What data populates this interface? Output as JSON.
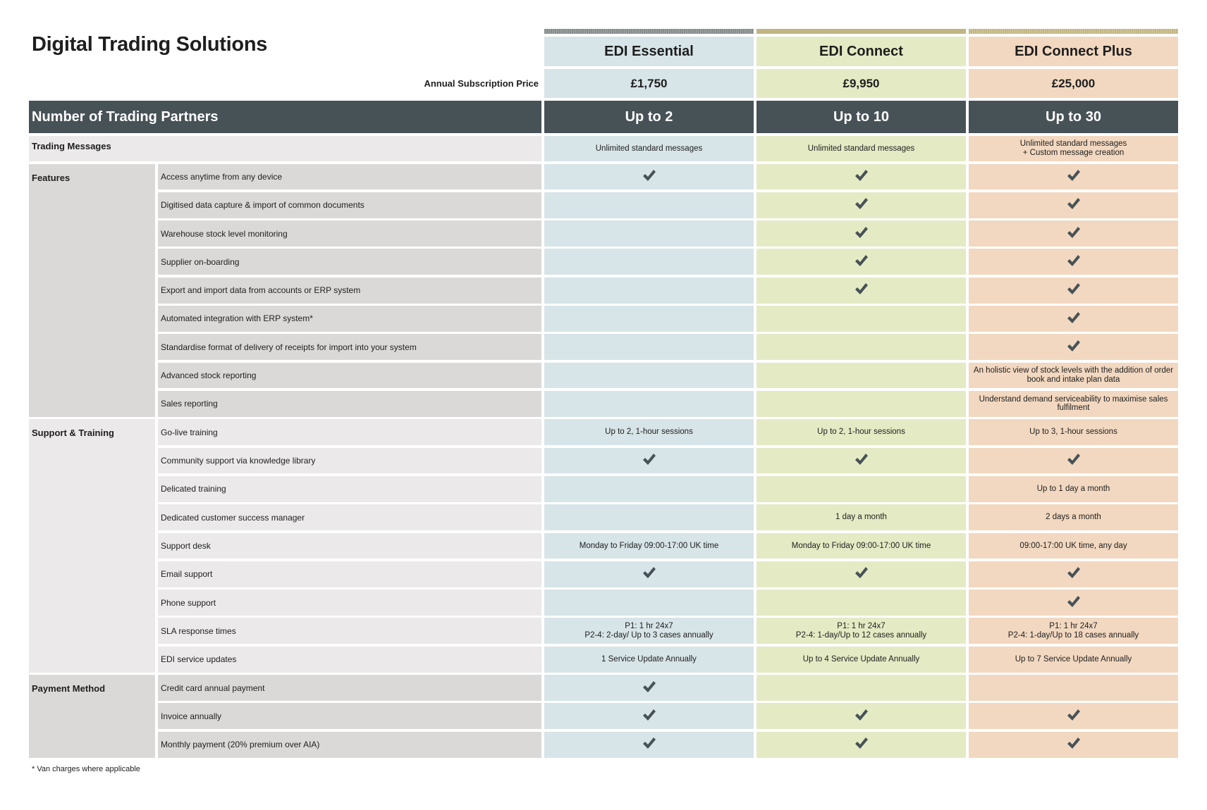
{
  "title": "Digital Trading Solutions",
  "plans": [
    "EDI Essential",
    "EDI Connect",
    "EDI Connect Plus"
  ],
  "price_label": "Annual Subscription Price",
  "prices": [
    "£1,750",
    "£9,950",
    "£25,000"
  ],
  "partners_label": "Number of Trading Partners",
  "partners": [
    "Up to 2",
    "Up to 10",
    "Up to 30"
  ],
  "trading_messages": {
    "label": "Trading Messages",
    "values": [
      "Unlimited standard messages",
      "Unlimited standard messages",
      "Unlimited standard messages\n+ Custom message creation"
    ]
  },
  "groups": [
    {
      "label": "Features",
      "shade": "dark",
      "rows": [
        {
          "label": "Access anytime from any device",
          "values": [
            "check",
            "check",
            "check"
          ]
        },
        {
          "label": "Digitised data capture & import of common documents",
          "values": [
            "",
            "check",
            "check"
          ]
        },
        {
          "label": "Warehouse stock level monitoring",
          "values": [
            "",
            "check",
            "check"
          ]
        },
        {
          "label": "Supplier on-boarding",
          "values": [
            "",
            "check",
            "check"
          ]
        },
        {
          "label": "Export and import data from accounts or ERP system",
          "values": [
            "",
            "check",
            "check"
          ]
        },
        {
          "label": "Automated integration with ERP system*",
          "values": [
            "",
            "",
            "check"
          ]
        },
        {
          "label": "Standardise format of delivery of receipts for import into your system",
          "values": [
            "",
            "",
            "check"
          ]
        },
        {
          "label": "Advanced stock reporting",
          "values": [
            "",
            "",
            "An holistic view of stock levels with the addition of order book and intake plan data"
          ]
        },
        {
          "label": "Sales reporting",
          "values": [
            "",
            "",
            "Understand demand serviceability to maximise sales fulfilment"
          ]
        }
      ]
    },
    {
      "label": "Support & Training",
      "shade": "light",
      "rows": [
        {
          "label": "Go-live training",
          "values": [
            "Up to 2, 1-hour sessions",
            "Up to 2, 1-hour sessions",
            "Up to 3, 1-hour sessions"
          ]
        },
        {
          "label": "Community support via knowledge library",
          "values": [
            "check",
            "check",
            "check"
          ]
        },
        {
          "label": "Delicated training",
          "values": [
            "",
            "",
            "Up to 1 day a month"
          ]
        },
        {
          "label": "Dedicated customer success manager",
          "values": [
            "",
            "1 day a month",
            "2 days a month"
          ]
        },
        {
          "label": "Support desk",
          "values": [
            "Monday to Friday 09:00-17:00 UK time",
            "Monday to Friday 09:00-17:00 UK time",
            "09:00-17:00 UK time, any day"
          ]
        },
        {
          "label": "Email support",
          "values": [
            "check",
            "check",
            "check"
          ]
        },
        {
          "label": "Phone support",
          "values": [
            "",
            "",
            "check"
          ]
        },
        {
          "label": "SLA response times",
          "values": [
            "P1: 1 hr 24x7\nP2-4: 2-day/ Up to 3 cases annually",
            "P1: 1 hr 24x7\nP2-4: 1-day/Up to 12 cases annually",
            "P1: 1 hr 24x7\nP2-4: 1-day/Up to 18 cases annually"
          ]
        },
        {
          "label": "EDI service updates",
          "values": [
            "1 Service Update Annually",
            "Up to  4 Service Update Annually",
            "Up to 7 Service Update Annually"
          ]
        }
      ]
    },
    {
      "label": "Payment Method",
      "shade": "dark",
      "rows": [
        {
          "label": "Credit card annual payment",
          "values": [
            "check",
            "",
            ""
          ]
        },
        {
          "label": "Invoice annually",
          "values": [
            "check",
            "check",
            "check"
          ]
        },
        {
          "label": "Monthly payment (20% premium over AIA)",
          "values": [
            "check",
            "check",
            "check"
          ]
        }
      ]
    }
  ],
  "footnote": "* Van charges where applicable",
  "colors": {
    "essential": "#d7e4e8",
    "connect": "#e4eac4",
    "connect_plus": "#f2d8c0",
    "header_dark": "#475257",
    "check": "#475257"
  }
}
